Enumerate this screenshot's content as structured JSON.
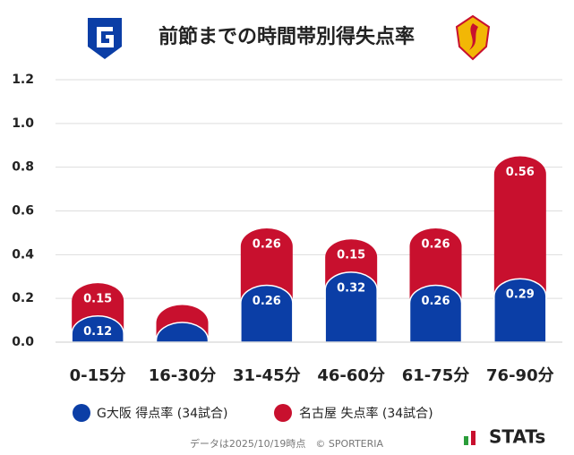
{
  "chart_data": {
    "type": "stacked-bar",
    "title": "前節までの時間帯別得失点率",
    "categories": [
      "0-15分",
      "16-30分",
      "31-45分",
      "46-60分",
      "61-75分",
      "76-90分"
    ],
    "series": [
      {
        "name": "G大阪 得点率 (34試合)",
        "color": "#0b3ea6",
        "values": [
          0.12,
          0.09,
          0.26,
          0.32,
          0.26,
          0.29
        ],
        "value_labels": [
          "0.12",
          null,
          "0.26",
          "0.32",
          "0.26",
          "0.29"
        ]
      },
      {
        "name": "名古屋 失点率 (34試合)",
        "color": "#c8102e",
        "values": [
          0.15,
          0.08,
          0.26,
          0.15,
          0.26,
          0.56
        ],
        "value_labels": [
          "0.15",
          null,
          "0.26",
          "0.15",
          "0.26",
          "0.56"
        ]
      }
    ],
    "ylim": [
      0,
      1.2
    ],
    "yticks": [
      {
        "value": 0,
        "label": "0.0"
      },
      0.2,
      0.4,
      0.6,
      0.8,
      {
        "value": 1,
        "label": "1.0"
      },
      1.2
    ],
    "grid": true,
    "footnote": "データは2025/10/19時点　© SPORTERIA",
    "branding": "STATs"
  }
}
